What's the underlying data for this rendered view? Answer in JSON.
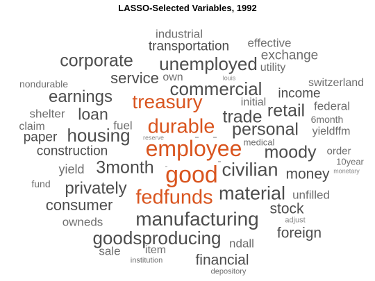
{
  "title": "LASSO-Selected Variables, 1992",
  "colors": {
    "highlight": "#d9541e",
    "dark": "#4d4d4d",
    "medium": "#6e6e6e",
    "light": "#8a8a8a"
  },
  "words": {
    "industrial": "industrial",
    "transportation": "transportation",
    "effective": "effective",
    "exchange": "exchange",
    "utility": "utility",
    "corporate": "corporate",
    "unemployed": "unemployed",
    "service": "service",
    "own": "own",
    "louis": "louis",
    "nondurable": "nondurable",
    "switzerland": "switzerland",
    "commercial": "commercial",
    "income": "income",
    "earnings": "earnings",
    "treasury": "treasury",
    "initial": "initial",
    "federal": "federal",
    "shelter": "shelter",
    "loan": "loan",
    "retail": "retail",
    "trade": "trade",
    "6month": "6month",
    "claim": "claim",
    "fuel": "fuel",
    "durable": "durable",
    "personal": "personal",
    "yieldffm": "yieldffm",
    "paper": "paper",
    "housing": "housing",
    "reserve": "reserve",
    "medical": "medical",
    "construction": "construction",
    "employee": "employee",
    "moody": "moody",
    "order": "order",
    "10year": "10year",
    "yield": "yield",
    "3month": "3month",
    "civilian": "civilian",
    "money": "money",
    "monetary": "monetary",
    "good": "good",
    "fund": "fund",
    "privately": "privately",
    "material": "material",
    "unfilled": "unfilled",
    "fedfunds": "fedfunds",
    "consumer": "consumer",
    "stock": "stock",
    "owneds": "owneds",
    "manufacturing": "manufacturing",
    "adjust": "adjust",
    "goodsproducing": "goodsproducing",
    "foreign": "foreign",
    "ndall": "ndall",
    "sale": "sale",
    "item": "item",
    "institution": "institution",
    "financial": "financial",
    "depository": "depository"
  }
}
